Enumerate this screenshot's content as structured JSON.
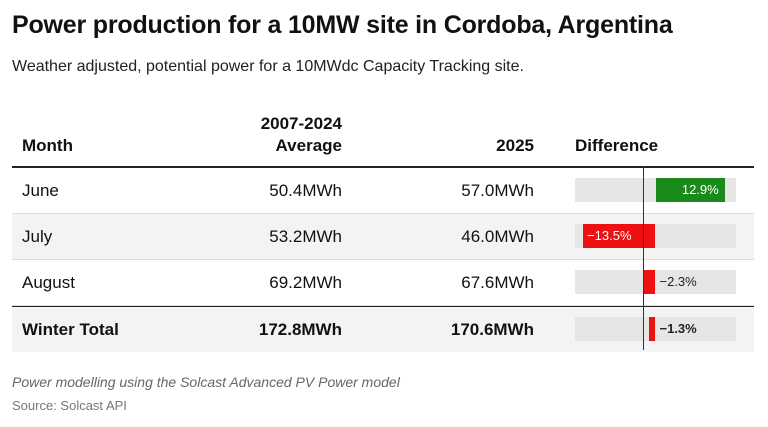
{
  "title": "Power production for a 10MW site in Cordoba, Argentina",
  "subtitle": "Weather adjusted, potential power for a 10MWdc Capacity Tracking site.",
  "headers": {
    "month": "Month",
    "avg_line1": "2007-2024",
    "avg_line2": "Average",
    "y2025": "2025",
    "difference": "Difference"
  },
  "chart_data": {
    "type": "table",
    "columns": [
      "Month",
      "2007-2024 Average",
      "2025",
      "Difference"
    ],
    "rows": [
      {
        "month": "June",
        "avg": "50.4MWh",
        "y2025": "57.0MWh",
        "diff": 12.9,
        "diff_label": "12.9%"
      },
      {
        "month": "July",
        "avg": "53.2MWh",
        "y2025": "46.0MWh",
        "diff": -13.5,
        "diff_label": "−13.5%"
      },
      {
        "month": "August",
        "avg": "69.2MWh",
        "y2025": "67.6MWh",
        "diff": -2.3,
        "diff_label": "−2.3%"
      },
      {
        "month": "Winter Total",
        "avg": "172.8MWh",
        "y2025": "170.6MWh",
        "diff": -1.3,
        "diff_label": "−1.3%",
        "total": true
      }
    ],
    "diff_range": [
      -15,
      15
    ]
  },
  "colors": {
    "positive": "#1a8a1a",
    "negative": "#ee1111"
  },
  "note": "Power modelling using the Solcast Advanced PV Power model",
  "source": "Source: Solcast API"
}
